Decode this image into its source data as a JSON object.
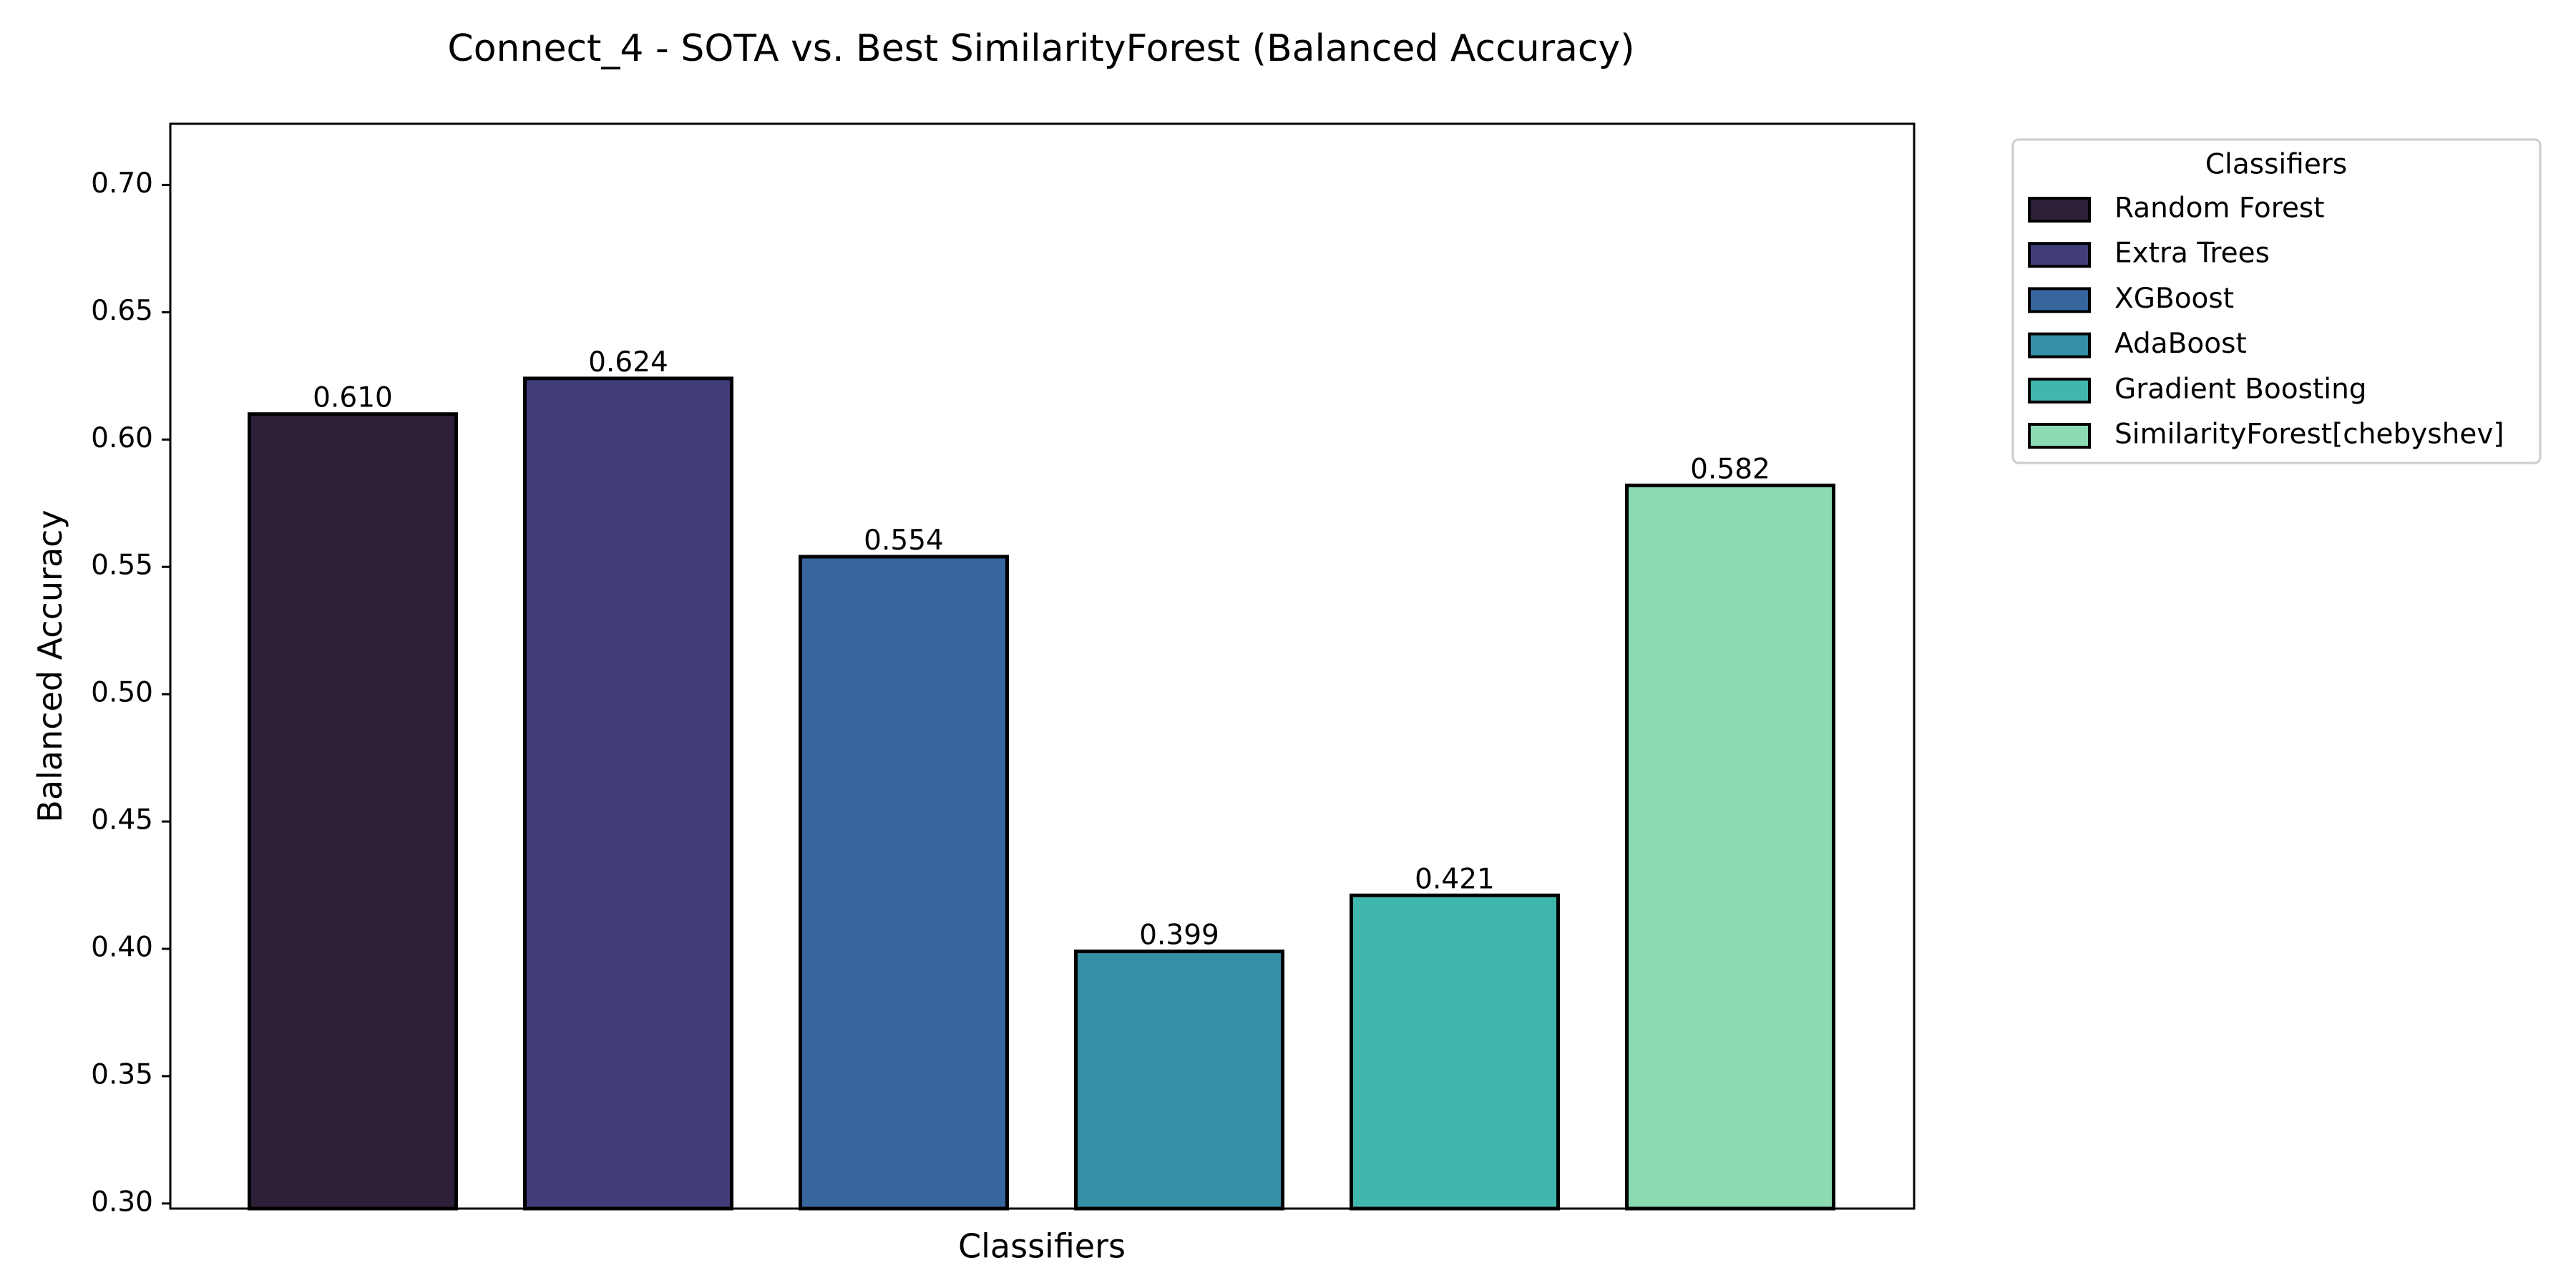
{
  "chart_data": {
    "type": "bar",
    "title": "Connect_4 - SOTA vs. Best SimilarityForest (Balanced Accuracy)",
    "xlabel": "Classifiers",
    "ylabel": "Balanced Accuracy",
    "ylim": [
      0.298,
      0.724
    ],
    "yticks": [
      "0.30",
      "0.35",
      "0.40",
      "0.45",
      "0.50",
      "0.55",
      "0.60",
      "0.65",
      "0.70"
    ],
    "grid": false,
    "legend": {
      "title": "Classifiers",
      "placement": "outside upper-right"
    },
    "categories": [
      "Random Forest",
      "Extra Trees",
      "XGBoost",
      "AdaBoost",
      "Gradient Boosting",
      "SimilarityForest[chebyshev]"
    ],
    "values": [
      0.61,
      0.624,
      0.554,
      0.399,
      0.421,
      0.582
    ],
    "value_labels": [
      "0.610",
      "0.624",
      "0.554",
      "0.399",
      "0.421",
      "0.582"
    ],
    "colors": [
      "#2e1f39",
      "#413d7a",
      "#37659e",
      "#348fa7",
      "#40b7ad",
      "#8bdab2"
    ],
    "edge_color": "#000000"
  }
}
